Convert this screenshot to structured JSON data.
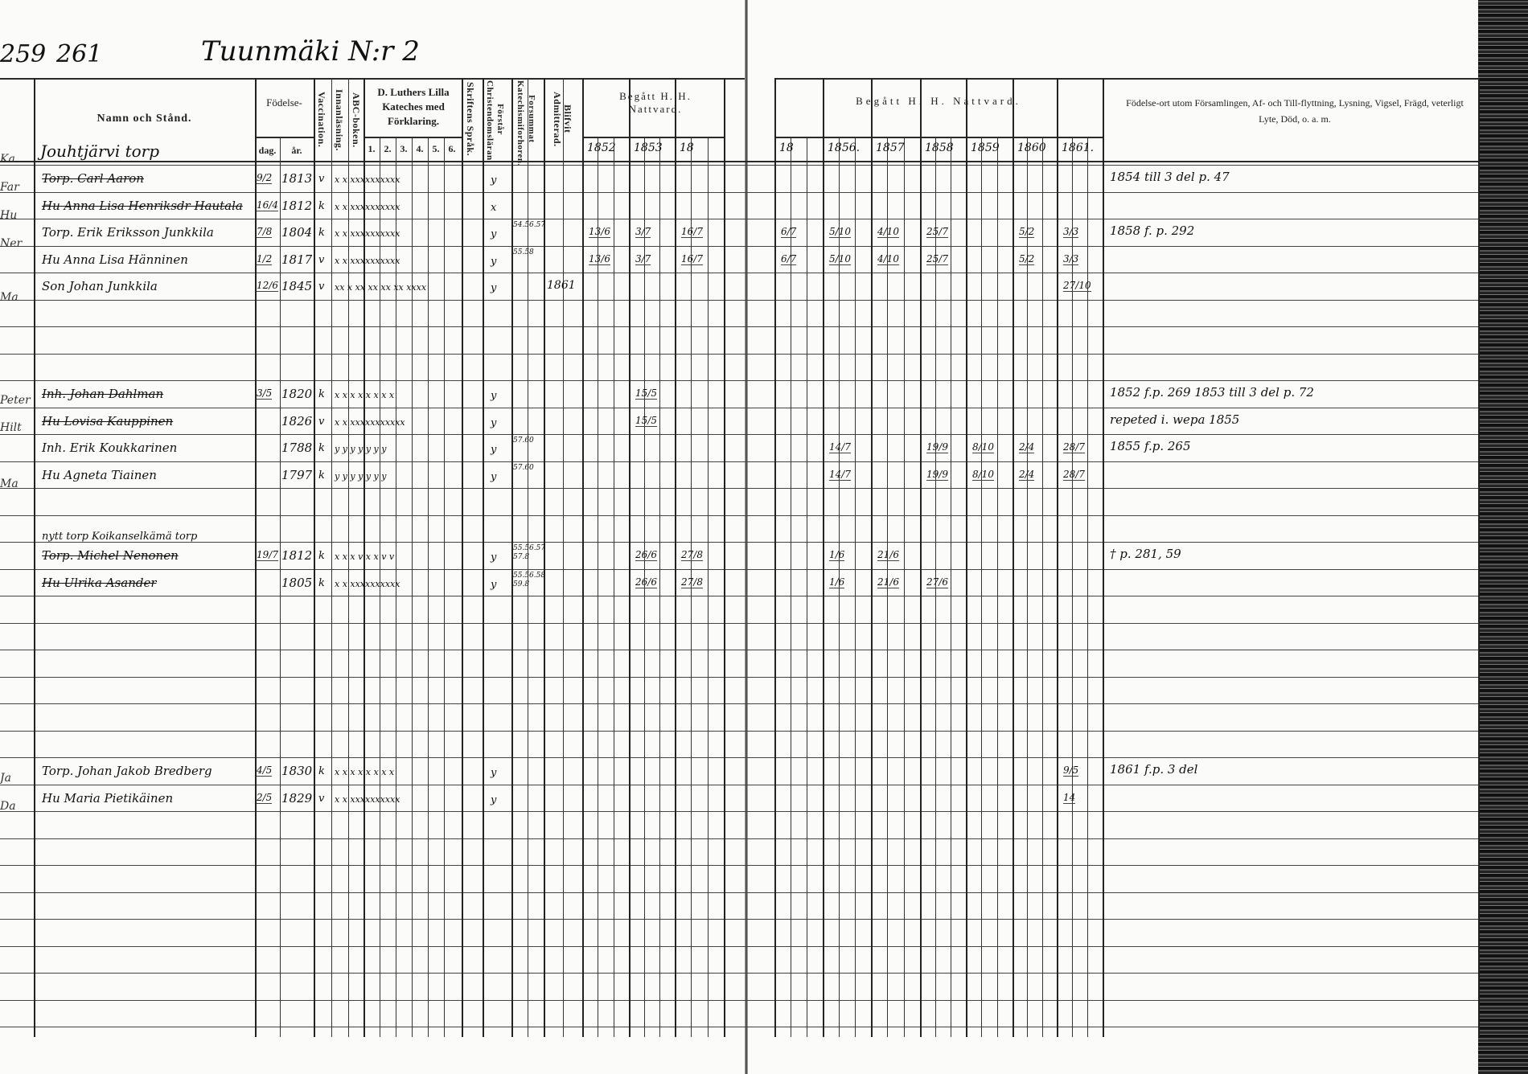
{
  "page": {
    "prev_page_number": "259",
    "page_number": "261",
    "title": "Tuunmäki N:r 2",
    "margin_fragments": [
      "Ka",
      "Far",
      "Hu",
      "Ner",
      "Ma",
      "Peter",
      "Hilt",
      "Ma",
      "Ja",
      "Da"
    ]
  },
  "header": {
    "name": "Namn och Stånd.",
    "birth": "Födelse-",
    "birth_day": "dag.",
    "birth_year": "år.",
    "vaccination": "Vaccination.",
    "innanlasning": "Innanläsning.",
    "abc": "ABC-boken.",
    "luther": "D. Luthers Lilla Kateches med Förklaring.",
    "luther_parts": [
      "1.",
      "2.",
      "3.",
      "4.",
      "5.",
      "6."
    ],
    "skriftens": "Skriftens Språk.",
    "forstar": "Förstår Christendomsläran.",
    "forsummat": "Forsummat Katechismiforhoren.",
    "admitterad": "Blifvit Admitterad.",
    "communion_left": "Begått H. H. Nattvard.",
    "years_left": [
      "1852",
      "1853",
      "18"
    ],
    "communion_right": "Begått H. H. Nattvard.",
    "years_right": [
      "18",
      "1856.",
      "1857",
      "1858",
      "1859",
      "1860",
      "1861."
    ],
    "notes": "Födelse-ort utom Församlingen, Af- och Till-flyttning, Lysning, Vigsel, Frägd, veterligt Lyte, Död, o. a. m."
  },
  "house_label": "Jouhtjärvi torp",
  "rows": [
    {
      "name": "Torp. Carl Aaron",
      "struck": true,
      "day": "9/2",
      "year": "1813",
      "vacc": "v",
      "marks": "x  x  xxxxxxxxxx",
      "skrift": "y",
      "forsummat": "",
      "admit": "",
      "communion": {},
      "note": "1854 till 3 del p. 47"
    },
    {
      "name": "Hu Anna Lisa Henriksdr Hautala",
      "struck": true,
      "day": "16/4",
      "year": "1812",
      "vacc": "k",
      "marks": "x  x  xxxxxxxxxx",
      "skrift": "x",
      "forsummat": "",
      "admit": "",
      "communion": {},
      "note": ""
    },
    {
      "name": "Torp. Erik Eriksson Junkkila",
      "struck": false,
      "day": "7/8",
      "year": "1804",
      "vacc": "k",
      "marks": "x  x  xxxxxxxxxx",
      "skrift": "y",
      "forsummat": "54.56.57",
      "admit": "",
      "communion": {
        "1852": "13/6",
        "1853": "3/7",
        "18": "16/7",
        "R18": "6/7",
        "1856": "5/10",
        "1857": "4/10",
        "1858": "25/7",
        "1860": "5/2",
        "1861": "3/3"
      },
      "note": "1858 f. p. 292"
    },
    {
      "name": "Hu Anna Lisa Hänninen",
      "struck": false,
      "day": "1/2",
      "year": "1817",
      "vacc": "v",
      "marks": "x  x  xxxxxxxxxx",
      "skrift": "y",
      "forsummat": "55.58",
      "admit": "",
      "communion": {
        "1852": "13/6",
        "1853": "3/7",
        "18": "16/7",
        "R18": "6/7",
        "1856": "5/10",
        "1857": "4/10",
        "1858": "25/7",
        "1860": "5/2",
        "1861": "3/3"
      },
      "note": ""
    },
    {
      "name": "Son Johan Junkkila",
      "struck": false,
      "day": "12/6",
      "year": "1845",
      "vacc": "v",
      "marks": "xx x  xx xx xx xx xxxx",
      "skrift": "y",
      "forsummat": "",
      "admit": "1861",
      "communion": {
        "1861": "27/10"
      },
      "note": ""
    },
    {
      "name": "",
      "struck": false,
      "day": "",
      "year": "",
      "vacc": "",
      "marks": "",
      "skrift": "",
      "forsummat": "",
      "admit": "",
      "communion": {},
      "note": ""
    },
    {
      "name": "",
      "struck": false,
      "day": "",
      "year": "",
      "vacc": "",
      "marks": "",
      "skrift": "",
      "forsummat": "",
      "admit": "",
      "communion": {},
      "note": ""
    },
    {
      "name": "",
      "struck": false,
      "day": "",
      "year": "",
      "vacc": "",
      "marks": "",
      "skrift": "",
      "forsummat": "",
      "admit": "",
      "communion": {},
      "note": ""
    },
    {
      "name": "Inh. Johan Dahlman",
      "struck": true,
      "day": "3/5",
      "year": "1820",
      "vacc": "k",
      "marks": "x x x x x x x x",
      "skrift": "y",
      "forsummat": "",
      "admit": "",
      "communion": {
        "1853": "15/5"
      },
      "note": "1852 f.p. 269 1853 till 3 del p. 72"
    },
    {
      "name": "Hu Lovisa Kauppinen",
      "struck": true,
      "day": "",
      "year": "1826",
      "vacc": "v",
      "marks": "x x xxxxxxxxxxx",
      "skrift": "y",
      "forsummat": "",
      "admit": "",
      "communion": {
        "1853": "15/5"
      },
      "note": "repeted i. wepa 1855"
    },
    {
      "name": "Inh. Erik Koukkarinen",
      "struck": false,
      "day": "",
      "year": "1788",
      "vacc": "k",
      "marks": "y y y y y y y",
      "skrift": "y",
      "forsummat": "57.60",
      "admit": "",
      "communion": {
        "1856": "14/7",
        "1858": "19/9",
        "1859": "8/10",
        "1860": "2/4",
        "1861": "28/7"
      },
      "note": "1855 f.p. 265"
    },
    {
      "name": "Hu Agneta Tiainen",
      "struck": false,
      "day": "",
      "year": "1797",
      "vacc": "k",
      "marks": "y y y y y y y",
      "skrift": "y",
      "forsummat": "57.60",
      "admit": "",
      "communion": {
        "1856": "14/7",
        "1858": "19/9",
        "1859": "8/10",
        "1860": "2/4",
        "1861": "28/7"
      },
      "note": ""
    },
    {
      "name": "",
      "struck": false,
      "day": "",
      "year": "",
      "vacc": "",
      "marks": "",
      "skrift": "",
      "forsummat": "",
      "admit": "",
      "communion": {},
      "note": ""
    },
    {
      "name": "",
      "struck": false,
      "day": "",
      "year": "",
      "vacc": "",
      "marks": "",
      "skrift": "",
      "forsummat": "",
      "admit": "",
      "communion": {},
      "note": ""
    },
    {
      "name": "Torp. Michel Nenonen",
      "pre": "nytt torp Koikanselkämä torp",
      "struck": true,
      "day": "19/7",
      "year": "1812",
      "vacc": "k",
      "marks": "x x x v x x v v",
      "skrift": "y",
      "forsummat": "55.56.57 57.8",
      "admit": "",
      "communion": {
        "1853": "26/6",
        "18": "27/8",
        "1856": "1/6",
        "1857": "21/6"
      },
      "note": "† p. 281, 59"
    },
    {
      "name": "Hu Ulrika Asander",
      "struck": true,
      "day": "",
      "year": "1805",
      "vacc": "k",
      "marks": "x x xxxxxxxxxx",
      "skrift": "y",
      "forsummat": "55.56.58 59.8",
      "admit": "",
      "communion": {
        "1853": "26/6",
        "18": "27/8",
        "1856": "1/6",
        "1857": "21/6",
        "1858": "27/6"
      },
      "note": ""
    },
    {
      "name": "",
      "struck": false,
      "day": "",
      "year": "",
      "vacc": "",
      "marks": "",
      "skrift": "",
      "forsummat": "",
      "admit": "",
      "communion": {},
      "note": ""
    },
    {
      "name": "",
      "struck": false,
      "day": "",
      "year": "",
      "vacc": "",
      "marks": "",
      "skrift": "",
      "forsummat": "",
      "admit": "",
      "communion": {},
      "note": ""
    },
    {
      "name": "",
      "struck": false,
      "day": "",
      "year": "",
      "vacc": "",
      "marks": "",
      "skrift": "",
      "forsummat": "",
      "admit": "",
      "communion": {},
      "note": ""
    },
    {
      "name": "",
      "struck": false,
      "day": "",
      "year": "",
      "vacc": "",
      "marks": "",
      "skrift": "",
      "forsummat": "",
      "admit": "",
      "communion": {},
      "note": ""
    },
    {
      "name": "",
      "struck": false,
      "day": "",
      "year": "",
      "vacc": "",
      "marks": "",
      "skrift": "",
      "forsummat": "",
      "admit": "",
      "communion": {},
      "note": ""
    },
    {
      "name": "",
      "struck": false,
      "day": "",
      "year": "",
      "vacc": "",
      "marks": "",
      "skrift": "",
      "forsummat": "",
      "admit": "",
      "communion": {},
      "note": ""
    },
    {
      "name": "Torp. Johan Jakob Bredberg",
      "struck": false,
      "day": "4/5",
      "year": "1830",
      "vacc": "k",
      "marks": "x x x x x x x x",
      "skrift": "y",
      "forsummat": "",
      "admit": "",
      "communion": {
        "1861": "9/5"
      },
      "note": "1861 f.p. 3 del"
    },
    {
      "name": "Hu Maria Pietikäinen",
      "struck": false,
      "day": "2/5",
      "year": "1829",
      "vacc": "v",
      "marks": "x x xxxxxxxxxx",
      "skrift": "y",
      "forsummat": "",
      "admit": "",
      "communion": {
        "1861": "14"
      },
      "note": ""
    },
    {
      "name": "",
      "struck": false,
      "day": "",
      "year": "",
      "vacc": "",
      "marks": "",
      "skrift": "",
      "forsummat": "",
      "admit": "",
      "communion": {},
      "note": ""
    },
    {
      "name": "",
      "struck": false,
      "day": "",
      "year": "",
      "vacc": "",
      "marks": "",
      "skrift": "",
      "forsummat": "",
      "admit": "",
      "communion": {},
      "note": ""
    },
    {
      "name": "",
      "struck": false,
      "day": "",
      "year": "",
      "vacc": "",
      "marks": "",
      "skrift": "",
      "forsummat": "",
      "admit": "",
      "communion": {},
      "note": ""
    },
    {
      "name": "",
      "struck": false,
      "day": "",
      "year": "",
      "vacc": "",
      "marks": "",
      "skrift": "",
      "forsummat": "",
      "admit": "",
      "communion": {},
      "note": ""
    },
    {
      "name": "",
      "struck": false,
      "day": "",
      "year": "",
      "vacc": "",
      "marks": "",
      "skrift": "",
      "forsummat": "",
      "admit": "",
      "communion": {},
      "note": ""
    },
    {
      "name": "",
      "struck": false,
      "day": "",
      "year": "",
      "vacc": "",
      "marks": "",
      "skrift": "",
      "forsummat": "",
      "admit": "",
      "communion": {},
      "note": ""
    },
    {
      "name": "",
      "struck": false,
      "day": "",
      "year": "",
      "vacc": "",
      "marks": "",
      "skrift": "",
      "forsummat": "",
      "admit": "",
      "communion": {},
      "note": ""
    },
    {
      "name": "",
      "struck": false,
      "day": "",
      "year": "",
      "vacc": "",
      "marks": "",
      "skrift": "",
      "forsummat": "",
      "admit": "",
      "communion": {},
      "note": ""
    }
  ]
}
